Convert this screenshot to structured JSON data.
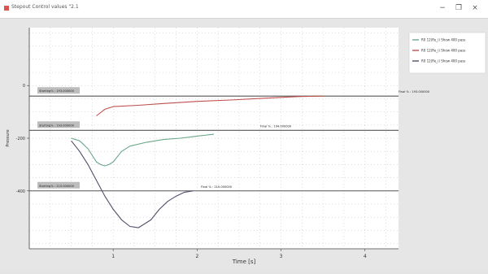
{
  "window": {
    "title": "Stepout Control values \"2.1",
    "minimize_glyph": "−",
    "maximize_glyph": "❐",
    "close_glyph": "×"
  },
  "chart_data": {
    "type": "line",
    "xlabel": "Time [s]",
    "ylabel": "Pressure",
    "xlim": [
      0,
      4.4
    ],
    "ylim": [
      -620,
      220
    ],
    "x_ticks": [
      1,
      2,
      3,
      4
    ],
    "x_tick_labels": [
      "1",
      "2",
      "3",
      "4"
    ],
    "y_ticks": [
      0,
      -200,
      -400
    ],
    "y_tick_labels": [
      "0",
      "-200",
      "-400"
    ],
    "grid": true,
    "legend_position": "top-right",
    "colors": {
      "series_1": "#6aa78b",
      "series_2": "#c0504d",
      "series_3": "#4f4f6b",
      "setpoint": "#555555"
    },
    "series": [
      {
        "name": "R0 12(Re_i) Show 400 pass",
        "x": [
          0.5,
          0.6,
          0.7,
          0.8,
          0.85,
          0.9,
          0.95,
          1.0,
          1.1,
          1.2,
          1.4,
          1.6,
          1.8,
          2.0,
          2.2
        ],
        "y": [
          -200,
          -210,
          -240,
          -290,
          -300,
          -305,
          -300,
          -290,
          -250,
          -230,
          -215,
          -205,
          -200,
          -192,
          -185
        ]
      },
      {
        "name": "R0 12(Re_i) Show 400 pass",
        "x": [
          0.8,
          0.9,
          1.0,
          1.3,
          1.6,
          2.0,
          2.4,
          2.8,
          3.2,
          3.5
        ],
        "y": [
          -115,
          -90,
          -80,
          -75,
          -68,
          -60,
          -55,
          -48,
          -42,
          -40
        ]
      },
      {
        "name": "R0 12(Re_i) Show 400 pass",
        "x": [
          0.5,
          0.6,
          0.7,
          0.8,
          0.9,
          1.0,
          1.1,
          1.2,
          1.3,
          1.45,
          1.55,
          1.65,
          1.75,
          1.85,
          1.95
        ],
        "y": [
          -210,
          -250,
          -300,
          -360,
          -420,
          -470,
          -510,
          -535,
          -540,
          -510,
          -470,
          -440,
          -420,
          -405,
          -400
        ]
      }
    ],
    "setpoints": [
      {
        "y": -40,
        "label_left": "Starting% : 193.000000",
        "label_right": "Final % : 193.000000"
      },
      {
        "y": -170,
        "label_left": "Starting% : 193.000000",
        "label_right": "Final % : 194.000000"
      },
      {
        "y": -400,
        "label_left": "Starting% : 210.000000",
        "label_right": "Final % : 210.000000"
      }
    ]
  }
}
